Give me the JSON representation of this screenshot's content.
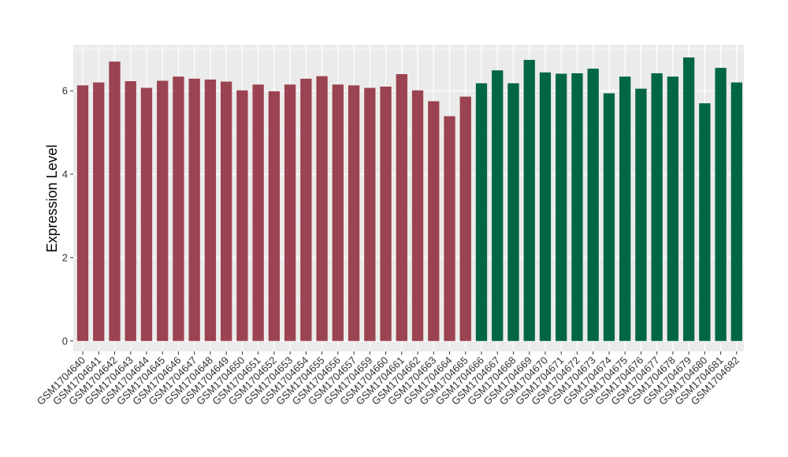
{
  "chart_data": {
    "type": "bar",
    "ylabel": "Expression Level",
    "xlabel": "",
    "ylim": [
      -0.25,
      7.1
    ],
    "yticks": [
      0,
      2,
      4,
      6
    ],
    "grid": true,
    "legend": "none",
    "colors": {
      "group1": "#9b4350",
      "group2": "#006644",
      "panel": "#ebebeb",
      "grid": "#ffffff"
    },
    "categories": [
      "GSM1704640",
      "GSM1704641",
      "GSM1704642",
      "GSM1704643",
      "GSM1704644",
      "GSM1704645",
      "GSM1704646",
      "GSM1704647",
      "GSM1704648",
      "GSM1704649",
      "GSM1704650",
      "GSM1704651",
      "GSM1704652",
      "GSM1704653",
      "GSM1704654",
      "GSM1704655",
      "GSM1704656",
      "GSM1704657",
      "GSM1704659",
      "GSM1704660",
      "GSM1704661",
      "GSM1704662",
      "GSM1704663",
      "GSM1704664",
      "GSM1704665",
      "GSM1704666",
      "GSM1704667",
      "GSM1704668",
      "GSM1704669",
      "GSM1704670",
      "GSM1704671",
      "GSM1704672",
      "GSM1704673",
      "GSM1704674",
      "GSM1704675",
      "GSM1704676",
      "GSM1704677",
      "GSM1704678",
      "GSM1704679",
      "GSM1704680",
      "GSM1704681",
      "GSM1704682"
    ],
    "values": [
      6.13,
      6.2,
      6.7,
      6.23,
      6.07,
      6.24,
      6.34,
      6.29,
      6.27,
      6.22,
      6.01,
      6.15,
      5.99,
      6.15,
      6.29,
      6.35,
      6.15,
      6.13,
      6.07,
      6.1,
      6.4,
      6.01,
      5.75,
      5.39,
      5.86,
      6.18,
      6.49,
      6.18,
      6.74,
      6.44,
      6.41,
      6.42,
      6.53,
      5.94,
      6.34,
      6.05,
      6.42,
      6.34,
      6.8,
      5.7,
      6.55,
      6.2
    ],
    "groups": [
      1,
      1,
      1,
      1,
      1,
      1,
      1,
      1,
      1,
      1,
      1,
      1,
      1,
      1,
      1,
      1,
      1,
      1,
      1,
      1,
      1,
      1,
      1,
      1,
      1,
      2,
      2,
      2,
      2,
      2,
      2,
      2,
      2,
      2,
      2,
      2,
      2,
      2,
      2,
      2,
      2,
      2
    ]
  }
}
